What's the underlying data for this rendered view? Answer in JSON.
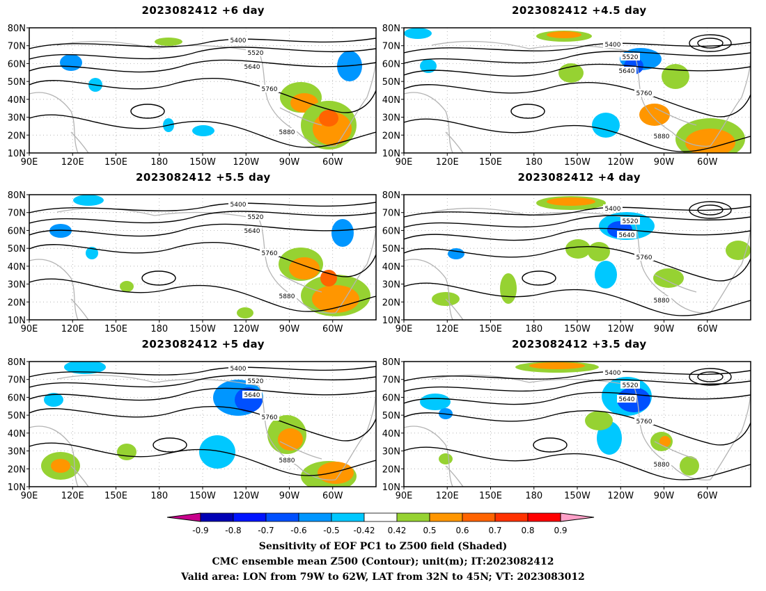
{
  "panels": [
    {
      "title": "2023082412  +6 day",
      "contours": [
        "5400",
        "5520",
        "5640",
        "5760",
        "5880"
      ]
    },
    {
      "title": "2023082412  +4.5 day",
      "contours": [
        "5400",
        "5520",
        "5640",
        "5760",
        "5880"
      ]
    },
    {
      "title": "2023082412  +5.5 day",
      "contours": [
        "5400",
        "5520",
        "5640",
        "5760",
        "5880"
      ]
    },
    {
      "title": "2023082412  +4 day",
      "contours": [
        "5400",
        "5520",
        "5640",
        "5760",
        "5880"
      ]
    },
    {
      "title": "2023082412  +5 day",
      "contours": [
        "5400",
        "5520",
        "5640",
        "5760",
        "5880"
      ]
    },
    {
      "title": "2023082412  +3.5 day",
      "contours": [
        "5400",
        "5520",
        "5640",
        "5760",
        "5880"
      ]
    }
  ],
  "axes": {
    "lat_labels": [
      "80N",
      "70N",
      "60N",
      "50N",
      "40N",
      "30N",
      "20N",
      "10N"
    ],
    "lon_labels": [
      "90E",
      "120E",
      "150E",
      "180",
      "150W",
      "120W",
      "90W",
      "60W"
    ]
  },
  "colorbar": {
    "labels": [
      "-0.9",
      "-0.8",
      "-0.7",
      "-0.6",
      "-0.5",
      "-0.42",
      "0.42",
      "0.5",
      "0.6",
      "0.7",
      "0.8",
      "0.9"
    ],
    "colors": [
      "#0000b4",
      "#0014ff",
      "#0050ff",
      "#0096ff",
      "#00c8ff",
      "#ffffff",
      "#96d232",
      "#ff9600",
      "#ff6400",
      "#ff3200",
      "#ff0000"
    ],
    "low_end": "#c8008c",
    "high_end": "#ffa0c8"
  },
  "colors": {
    "land": "#b4b4b4",
    "contour": "#000000",
    "pos1": "#96d232",
    "pos2": "#ff9600",
    "pos3": "#ff6400",
    "neg1": "#00c8ff",
    "neg2": "#0096ff",
    "neg3": "#0050ff"
  },
  "caption": {
    "line1": "Sensitivity of EOF PC1 to Z500 field (Shaded)",
    "line2": "CMC ensemble mean Z500 (Contour); unit(m); IT:2023082412",
    "line3": "Valid area: LON from 79W to 62W, LAT from 32N to 45N; VT: 2023083012"
  }
}
